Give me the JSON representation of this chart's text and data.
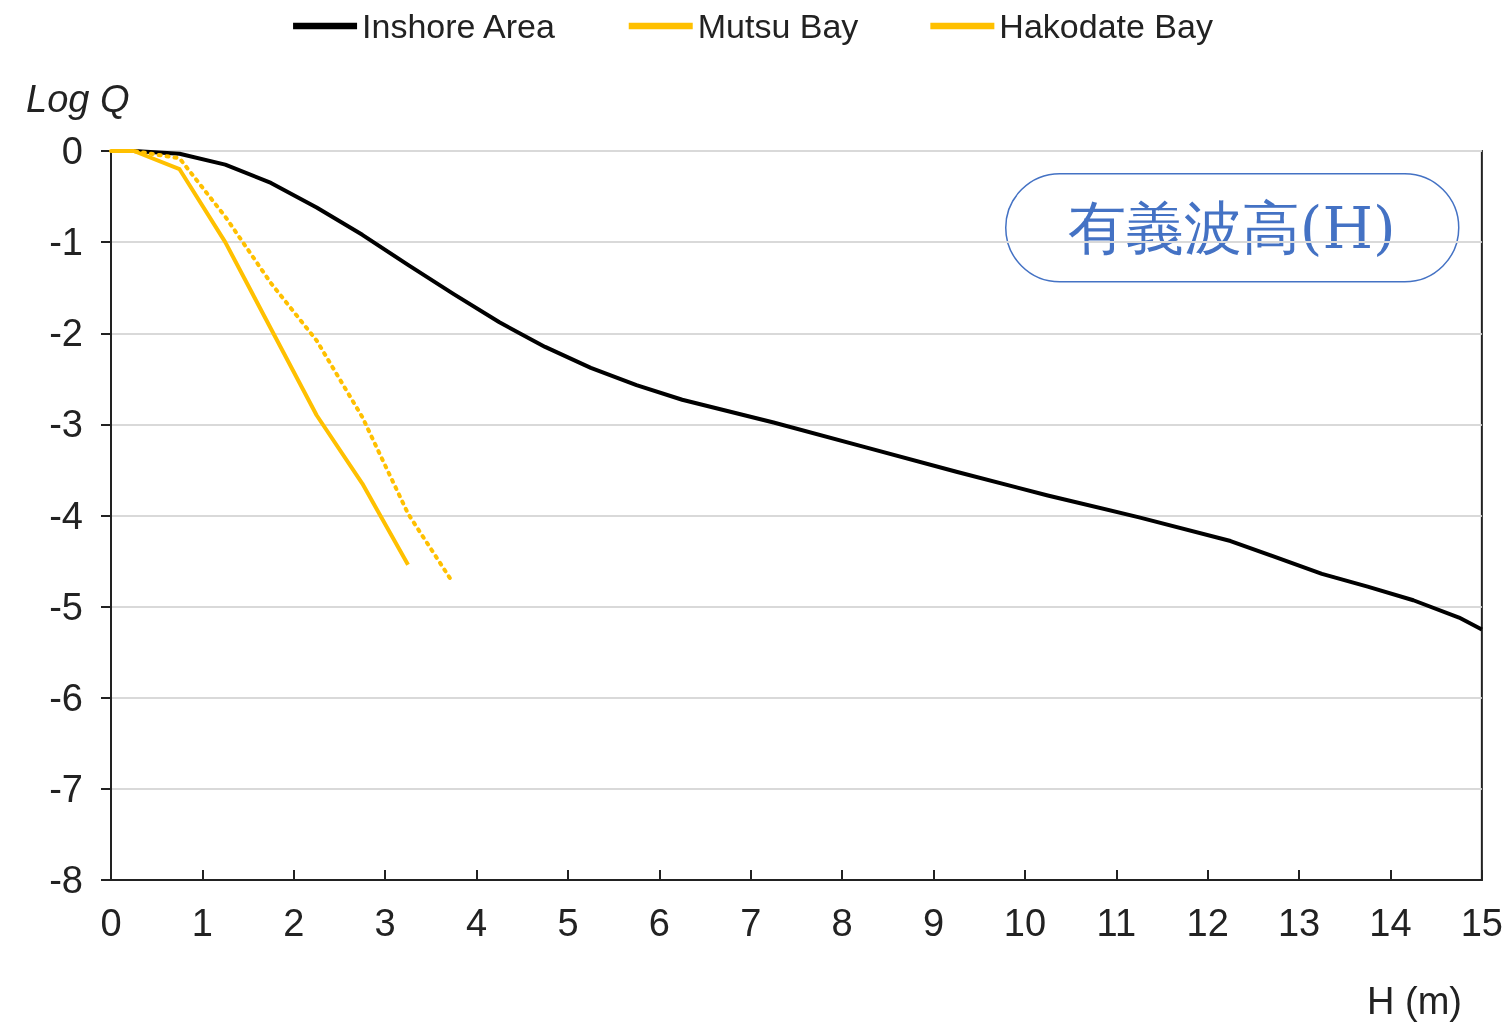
{
  "chart_data": {
    "type": "line",
    "xlabel": "H (m)",
    "ylabel": "Log Q",
    "annotations": [
      "有義波高(H)"
    ],
    "xlim": [
      0,
      15
    ],
    "xticks": [
      0,
      1,
      2,
      3,
      4,
      5,
      6,
      7,
      8,
      9,
      10,
      11,
      12,
      13,
      14,
      15
    ],
    "ylim": [
      -8,
      0
    ],
    "yticks": [
      -8,
      -7,
      -6,
      -5,
      -4,
      -3,
      -2,
      -1,
      0
    ],
    "grid": "y",
    "legend": "top",
    "marker": "none",
    "series": [
      {
        "name": "Inshore Area",
        "color": "#000000",
        "line_style": "solid",
        "x": [
          0,
          0.25,
          0.75,
          1.25,
          1.75,
          2.25,
          2.75,
          3.25,
          3.75,
          4.25,
          4.75,
          5.25,
          5.75,
          6.25,
          7.25,
          8.25,
          9.25,
          10.25,
          11.25,
          12.25,
          13.25,
          13.75,
          14.25,
          14.75,
          15
        ],
        "values": [
          0,
          0,
          -0.03,
          -0.15,
          -0.35,
          -0.62,
          -0.92,
          -1.25,
          -1.57,
          -1.88,
          -2.15,
          -2.38,
          -2.57,
          -2.73,
          -2.98,
          -3.25,
          -3.52,
          -3.78,
          -4.02,
          -4.28,
          -4.64,
          -4.78,
          -4.93,
          -5.12,
          -5.25
        ]
      },
      {
        "name": "Mutsu Bay",
        "color": "#ffc000",
        "line_style": "solid",
        "x": [
          0,
          0.25,
          0.75,
          1.25,
          1.75,
          2.25,
          2.75,
          3.25
        ],
        "values": [
          0,
          0,
          -0.2,
          -1.0,
          -1.95,
          -2.9,
          -3.65,
          -4.54
        ]
      },
      {
        "name": "Hakodate Bay",
        "color": "#ffc000",
        "line_style": "dotted",
        "x": [
          0,
          0.25,
          0.75,
          1.25,
          1.75,
          2.25,
          2.75,
          3.25,
          3.73
        ],
        "values": [
          0,
          0,
          -0.08,
          -0.72,
          -1.45,
          -2.08,
          -2.92,
          -3.98,
          -4.72
        ]
      }
    ]
  }
}
